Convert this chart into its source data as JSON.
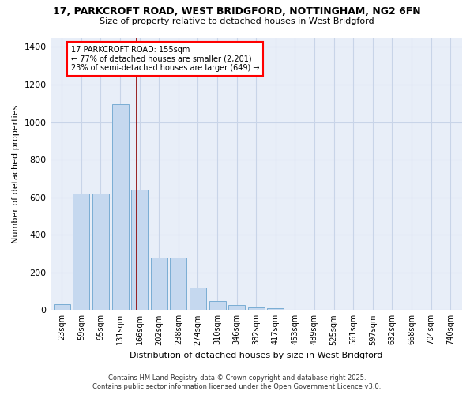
{
  "title_line1": "17, PARKCROFT ROAD, WEST BRIDGFORD, NOTTINGHAM, NG2 6FN",
  "title_line2": "Size of property relative to detached houses in West Bridgford",
  "xlabel": "Distribution of detached houses by size in West Bridgford",
  "ylabel": "Number of detached properties",
  "categories": [
    "23sqm",
    "59sqm",
    "95sqm",
    "131sqm",
    "166sqm",
    "202sqm",
    "238sqm",
    "274sqm",
    "310sqm",
    "346sqm",
    "382sqm",
    "417sqm",
    "453sqm",
    "489sqm",
    "525sqm",
    "561sqm",
    "597sqm",
    "632sqm",
    "668sqm",
    "704sqm",
    "740sqm"
  ],
  "values": [
    30,
    620,
    620,
    1095,
    640,
    280,
    280,
    120,
    48,
    28,
    15,
    10,
    0,
    0,
    0,
    0,
    0,
    0,
    0,
    0,
    0
  ],
  "bar_color": "#c5d8ef",
  "bar_edge_color": "#7aadd4",
  "grid_color": "#c8d4e8",
  "background_color": "#e8eef8",
  "vline_color": "#8b0000",
  "annotation_title": "17 PARKCROFT ROAD: 155sqm",
  "annotation_line1": "← 77% of detached houses are smaller (2,201)",
  "annotation_line2": "23% of semi-detached houses are larger (649) →",
  "footer_line1": "Contains HM Land Registry data © Crown copyright and database right 2025.",
  "footer_line2": "Contains public sector information licensed under the Open Government Licence v3.0.",
  "ylim": [
    0,
    1450
  ],
  "yticks": [
    0,
    200,
    400,
    600,
    800,
    1000,
    1200,
    1400
  ]
}
